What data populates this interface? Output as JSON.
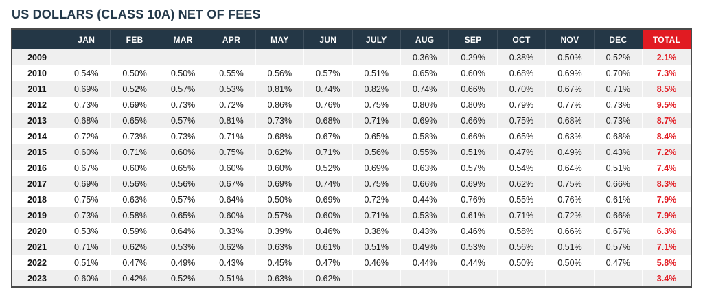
{
  "page": {
    "title": "US DOLLARS (CLASS 10A) NET OF FEES"
  },
  "colors": {
    "title_text": "#24394a",
    "header_bg": "#243746",
    "header_text": "#ffffff",
    "accent_red": "#e11b22",
    "row_stripe": "#efefef",
    "row_white": "#ffffff",
    "table_border": "#4a4a4a",
    "body_text": "#1d1d1d"
  },
  "chart_data": {
    "type": "table",
    "title": "US DOLLARS (CLASS 10A) NET OF FEES",
    "columns": [
      "",
      "JAN",
      "FEB",
      "MAR",
      "APR",
      "MAY",
      "JUN",
      "JULY",
      "AUG",
      "SEP",
      "OCT",
      "NOV",
      "DEC",
      "TOTAL"
    ],
    "rows": [
      {
        "year": "2009",
        "months": [
          "-",
          "-",
          "-",
          "-",
          "-",
          "-",
          "-",
          "0.36%",
          "0.29%",
          "0.38%",
          "0.50%",
          "0.52%"
        ],
        "total": "2.1%"
      },
      {
        "year": "2010",
        "months": [
          "0.54%",
          "0.50%",
          "0.50%",
          "0.55%",
          "0.56%",
          "0.57%",
          "0.51%",
          "0.65%",
          "0.60%",
          "0.68%",
          "0.69%",
          "0.70%"
        ],
        "total": "7.3%"
      },
      {
        "year": "2011",
        "months": [
          "0.69%",
          "0.52%",
          "0.57%",
          "0.53%",
          "0.81%",
          "0.74%",
          "0.82%",
          "0.74%",
          "0.66%",
          "0.70%",
          "0.67%",
          "0.71%"
        ],
        "total": "8.5%"
      },
      {
        "year": "2012",
        "months": [
          "0.73%",
          "0.69%",
          "0.73%",
          "0.72%",
          "0.86%",
          "0.76%",
          "0.75%",
          "0.80%",
          "0.80%",
          "0.79%",
          "0.77%",
          "0.73%"
        ],
        "total": "9.5%"
      },
      {
        "year": "2013",
        "months": [
          "0.68%",
          "0.65%",
          "0.57%",
          "0.81%",
          "0.73%",
          "0.68%",
          "0.71%",
          "0.69%",
          "0.66%",
          "0.75%",
          "0.68%",
          "0.73%"
        ],
        "total": "8.7%"
      },
      {
        "year": "2014",
        "months": [
          "0.72%",
          "0.73%",
          "0.73%",
          "0.71%",
          "0.68%",
          "0.67%",
          "0.65%",
          "0.58%",
          "0.66%",
          "0.65%",
          "0.63%",
          "0.68%"
        ],
        "total": "8.4%"
      },
      {
        "year": "2015",
        "months": [
          "0.60%",
          "0.71%",
          "0.60%",
          "0.75%",
          "0.62%",
          "0.71%",
          "0.56%",
          "0.55%",
          "0.51%",
          "0.47%",
          "0.49%",
          "0.43%"
        ],
        "total": "7.2%"
      },
      {
        "year": "2016",
        "months": [
          "0.67%",
          "0.60%",
          "0.65%",
          "0.60%",
          "0.60%",
          "0.52%",
          "0.69%",
          "0.63%",
          "0.57%",
          "0.54%",
          "0.64%",
          "0.51%"
        ],
        "total": "7.4%"
      },
      {
        "year": "2017",
        "months": [
          "0.69%",
          "0.56%",
          "0.56%",
          "0.67%",
          "0.69%",
          "0.74%",
          "0.75%",
          "0.66%",
          "0.69%",
          "0.62%",
          "0.75%",
          "0.66%"
        ],
        "total": "8.3%"
      },
      {
        "year": "2018",
        "months": [
          "0.75%",
          "0.63%",
          "0.57%",
          "0.64%",
          "0.50%",
          "0.69%",
          "0.72%",
          "0.44%",
          "0.76%",
          "0.55%",
          "0.76%",
          "0.61%"
        ],
        "total": "7.9%"
      },
      {
        "year": "2019",
        "months": [
          "0.73%",
          "0.58%",
          "0.65%",
          "0.60%",
          "0.57%",
          "0.60%",
          "0.71%",
          "0.53%",
          "0.61%",
          "0.71%",
          "0.72%",
          "0.66%"
        ],
        "total": "7.9%"
      },
      {
        "year": "2020",
        "months": [
          "0.53%",
          "0.59%",
          "0.64%",
          "0.33%",
          "0.39%",
          "0.46%",
          "0.38%",
          "0.43%",
          "0.46%",
          "0.58%",
          "0.66%",
          "0.67%"
        ],
        "total": "6.3%"
      },
      {
        "year": "2021",
        "months": [
          "0.71%",
          "0.62%",
          "0.53%",
          "0.62%",
          "0.63%",
          "0.61%",
          "0.51%",
          "0.49%",
          "0.53%",
          "0.56%",
          "0.51%",
          "0.57%"
        ],
        "total": "7.1%"
      },
      {
        "year": "2022",
        "months": [
          "0.51%",
          "0.47%",
          "0.49%",
          "0.43%",
          "0.45%",
          "0.47%",
          "0.46%",
          "0.44%",
          "0.44%",
          "0.50%",
          "0.50%",
          "0.47%"
        ],
        "total": "5.8%"
      },
      {
        "year": "2023",
        "months": [
          "0.60%",
          "0.42%",
          "0.52%",
          "0.51%",
          "0.63%",
          "0.62%",
          "",
          "",
          "",
          "",
          "",
          ""
        ],
        "total": "3.4%"
      }
    ]
  }
}
